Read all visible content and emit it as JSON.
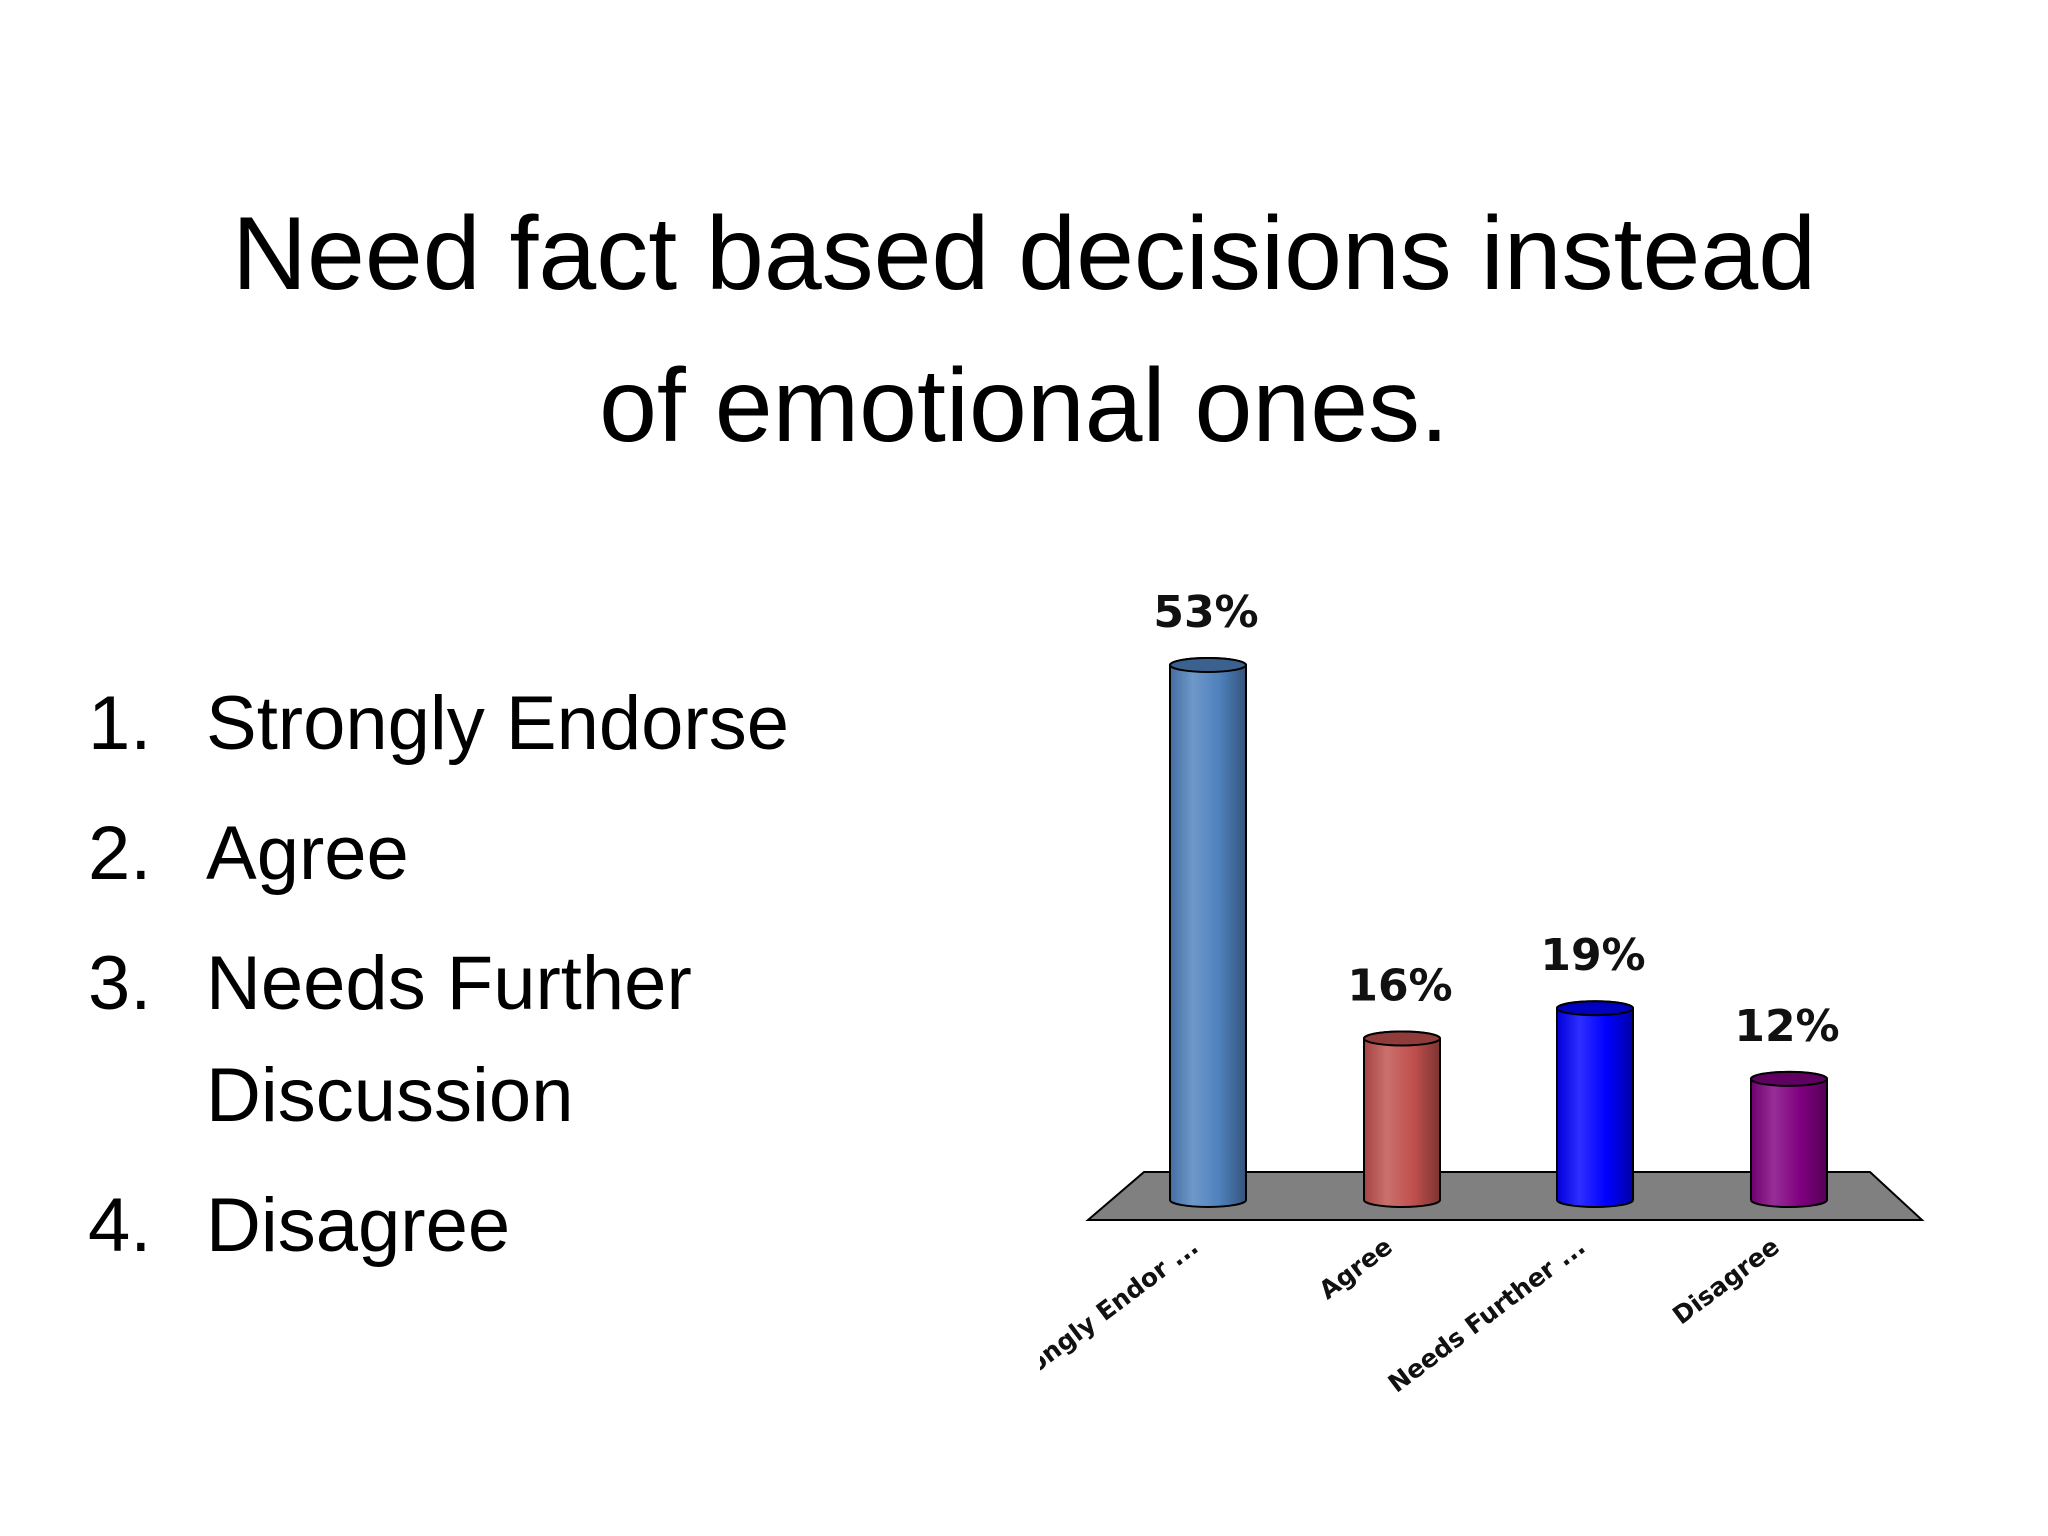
{
  "slide": {
    "title_lines": [
      "Need fact based decisions instead",
      "of emotional ones."
    ],
    "options": [
      {
        "number": "1.",
        "label": "Strongly Endorse"
      },
      {
        "number": "2.",
        "label": "Agree"
      },
      {
        "number": "3.",
        "label": "Needs Further Discussion"
      },
      {
        "number": "4.",
        "label": "Disagree"
      }
    ]
  },
  "chart_data": {
    "type": "bar",
    "style": "3d-cylinder",
    "categories": [
      "Strongly Endor ...",
      "Agree",
      "Needs Further ...",
      "Disagree"
    ],
    "values": [
      53,
      16,
      19,
      12
    ],
    "value_labels": [
      "53%",
      "16%",
      "19%",
      "12%"
    ],
    "unit": "%",
    "ylim": [
      0,
      53
    ],
    "grid": false,
    "legend": "none",
    "colors": [
      "#4F81BD",
      "#C0504D",
      "#0000FF",
      "#800080"
    ],
    "floor_color": "#808080",
    "title": "",
    "xlabel": "",
    "ylabel": ""
  }
}
